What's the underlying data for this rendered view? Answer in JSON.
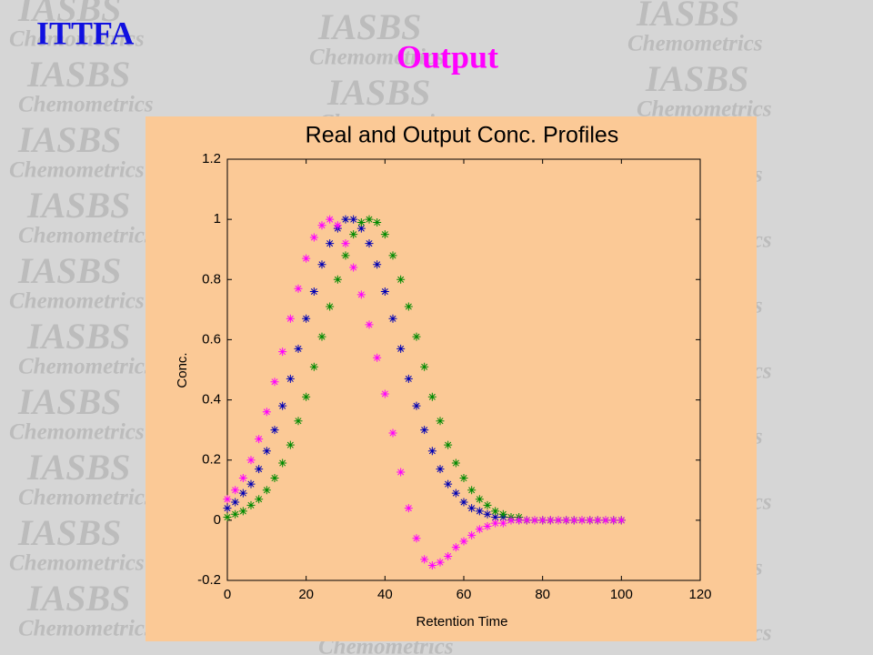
{
  "watermark": {
    "title": "IASBS",
    "subtitle": "Chemometrics"
  },
  "slide": {
    "title": "ITTFA",
    "subtitle": "Output"
  },
  "chart_data": {
    "type": "scatter",
    "title": "Real and Output Conc. Profiles",
    "xlabel": "Retention Time",
    "ylabel": "Conc.",
    "xlim": [
      0,
      120
    ],
    "ylim": [
      -0.2,
      1.2
    ],
    "xticks": [
      0,
      20,
      40,
      60,
      80,
      100,
      120
    ],
    "yticks": [
      -0.2,
      0,
      0.2,
      0.4,
      0.6,
      0.8,
      1,
      1.2
    ],
    "background": "#fbc996",
    "marker": "asterisk",
    "x": [
      0,
      2,
      4,
      6,
      8,
      10,
      12,
      14,
      16,
      18,
      20,
      22,
      24,
      26,
      28,
      30,
      32,
      34,
      36,
      38,
      40,
      42,
      44,
      46,
      48,
      50,
      52,
      54,
      56,
      58,
      60,
      62,
      64,
      66,
      68,
      70,
      72,
      74,
      76,
      78,
      80,
      82,
      84,
      86,
      88,
      90,
      92,
      94,
      96,
      98,
      100
    ],
    "series": [
      {
        "color": "#0000b4",
        "values": [
          0.04,
          0.06,
          0.09,
          0.12,
          0.17,
          0.23,
          0.3,
          0.38,
          0.47,
          0.57,
          0.67,
          0.76,
          0.85,
          0.92,
          0.97,
          1.0,
          1.0,
          0.97,
          0.92,
          0.85,
          0.76,
          0.67,
          0.57,
          0.47,
          0.38,
          0.3,
          0.23,
          0.17,
          0.12,
          0.09,
          0.06,
          0.04,
          0.03,
          0.02,
          0.01,
          0.01,
          0,
          0,
          0,
          0,
          0,
          0,
          0,
          0,
          0,
          0,
          0,
          0,
          0,
          0,
          0
        ]
      },
      {
        "color": "#008a00",
        "values": [
          0.01,
          0.02,
          0.03,
          0.05,
          0.07,
          0.1,
          0.14,
          0.19,
          0.25,
          0.33,
          0.41,
          0.51,
          0.61,
          0.71,
          0.8,
          0.88,
          0.95,
          0.99,
          1.0,
          0.99,
          0.95,
          0.88,
          0.8,
          0.71,
          0.61,
          0.51,
          0.41,
          0.33,
          0.25,
          0.19,
          0.14,
          0.1,
          0.07,
          0.05,
          0.03,
          0.02,
          0.01,
          0.01,
          0,
          0,
          0,
          0,
          0,
          0,
          0,
          0,
          0,
          0,
          0,
          0,
          0
        ]
      },
      {
        "color": "#ff00ff",
        "values": [
          0.07,
          0.1,
          0.14,
          0.2,
          0.27,
          0.36,
          0.46,
          0.56,
          0.67,
          0.77,
          0.87,
          0.94,
          0.98,
          1.0,
          0.98,
          0.92,
          0.84,
          0.75,
          0.65,
          0.54,
          0.42,
          0.29,
          0.16,
          0.04,
          -0.06,
          -0.13,
          -0.15,
          -0.14,
          -0.12,
          -0.09,
          -0.07,
          -0.05,
          -0.03,
          -0.02,
          -0.01,
          -0.01,
          0,
          0,
          0,
          0,
          0,
          0,
          0,
          0,
          0,
          0,
          0,
          0,
          0,
          0,
          0
        ]
      }
    ]
  }
}
